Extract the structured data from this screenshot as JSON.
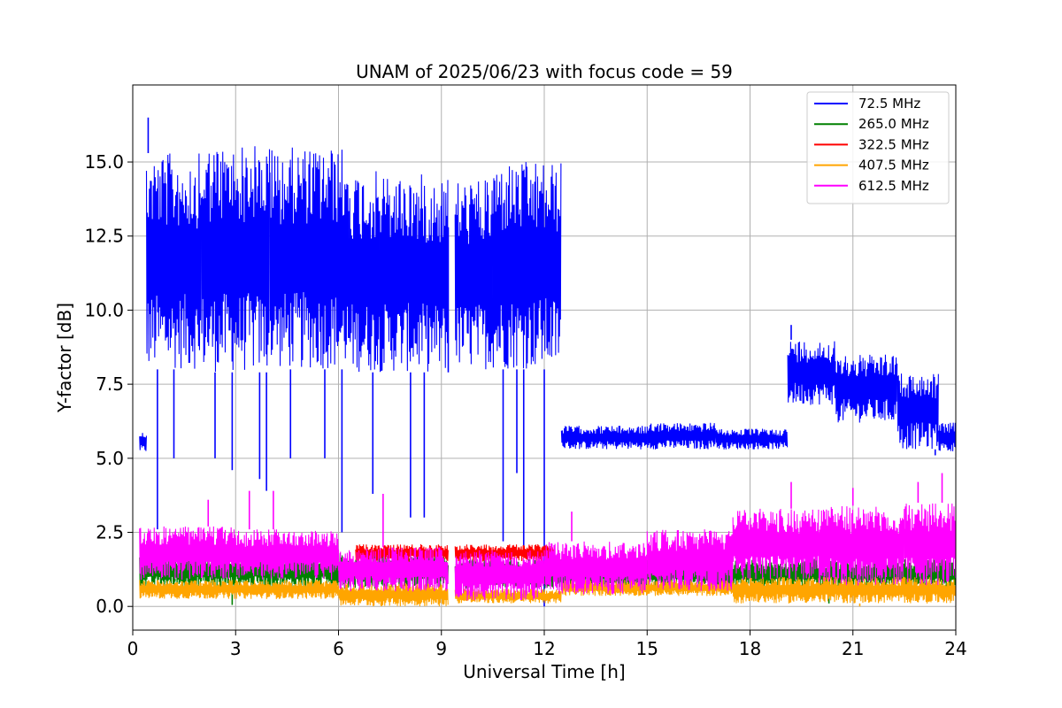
{
  "chart_data": {
    "type": "line",
    "title": "UNAM of 2025/06/23 with focus code = 59",
    "xlabel": "Universal Time [h]",
    "ylabel": "Y-factor [dB]",
    "xlim": [
      0,
      24
    ],
    "ylim": [
      -0.8,
      17.6
    ],
    "xticks": [
      0,
      3,
      6,
      9,
      12,
      15,
      18,
      21,
      24
    ],
    "xtick_labels": [
      "0",
      "3",
      "6",
      "9",
      "12",
      "15",
      "18",
      "21",
      "24"
    ],
    "yticks": [
      0.0,
      2.5,
      5.0,
      7.5,
      10.0,
      12.5,
      15.0
    ],
    "ytick_labels": [
      "0.0",
      "2.5",
      "5.0",
      "7.5",
      "10.0",
      "12.5",
      "15.0"
    ],
    "grid": true,
    "legend_position": "top-right",
    "series": [
      {
        "name": " 72.5 MHz",
        "color": "#0000ff",
        "bands": [
          {
            "x": [
              0.2,
              0.4
            ],
            "low": 5.2,
            "high": 5.9
          },
          {
            "x": [
              0.4,
              2.0
            ],
            "low": 8.0,
            "high": 15.3
          },
          {
            "x": [
              2.0,
              4.0
            ],
            "low": 7.9,
            "high": 15.6
          },
          {
            "x": [
              4.0,
              6.3
            ],
            "low": 8.0,
            "high": 15.5
          },
          {
            "x": [
              6.3,
              7.2
            ],
            "low": 7.9,
            "high": 14.7
          },
          {
            "x": [
              7.2,
              9.2
            ],
            "low": 7.9,
            "high": 14.6
          },
          {
            "x": [
              9.4,
              10.5
            ],
            "low": 8.0,
            "high": 14.4
          },
          {
            "x": [
              10.5,
              12.5
            ],
            "low": 8.0,
            "high": 15.0
          },
          {
            "x": [
              12.5,
              15.0
            ],
            "low": 5.3,
            "high": 6.1
          },
          {
            "x": [
              15.0,
              17.0
            ],
            "low": 5.3,
            "high": 6.2
          },
          {
            "x": [
              17.0,
              19.1
            ],
            "low": 5.3,
            "high": 6.0
          },
          {
            "x": [
              19.1,
              20.5
            ],
            "low": 6.8,
            "high": 9.0
          },
          {
            "x": [
              20.5,
              22.3
            ],
            "low": 6.2,
            "high": 8.5
          },
          {
            "x": [
              22.3,
              23.5
            ],
            "low": 5.3,
            "high": 7.9
          },
          {
            "x": [
              23.5,
              24.0
            ],
            "low": 5.2,
            "high": 6.2
          }
        ],
        "spikes": [
          {
            "x": 0.45,
            "y": 16.5
          },
          {
            "x": 0.72,
            "y": 2.6
          },
          {
            "x": 1.2,
            "y": 5.0
          },
          {
            "x": 2.4,
            "y": 5.0
          },
          {
            "x": 2.9,
            "y": 4.6
          },
          {
            "x": 3.7,
            "y": 4.3
          },
          {
            "x": 3.9,
            "y": 3.9
          },
          {
            "x": 4.6,
            "y": 5.0
          },
          {
            "x": 5.6,
            "y": 5.0
          },
          {
            "x": 6.1,
            "y": 2.5
          },
          {
            "x": 7.0,
            "y": 3.8
          },
          {
            "x": 8.1,
            "y": 3.0
          },
          {
            "x": 8.5,
            "y": 3.0
          },
          {
            "x": 9.2,
            "y": 12.8
          },
          {
            "x": 10.8,
            "y": 2.2
          },
          {
            "x": 11.2,
            "y": 4.5
          },
          {
            "x": 11.4,
            "y": 2.0
          },
          {
            "x": 12.0,
            "y": 0.0
          },
          {
            "x": 19.2,
            "y": 9.5
          },
          {
            "x": 23.4,
            "y": 5.1
          }
        ]
      },
      {
        "name": "265.0 MHz",
        "color": "#008000",
        "bands": [
          {
            "x": [
              0.2,
              9.2
            ],
            "low": 0.6,
            "high": 1.8
          },
          {
            "x": [
              9.4,
              24.0
            ],
            "low": 0.6,
            "high": 1.6
          }
        ],
        "spikes": [
          {
            "x": 2.9,
            "y": 0.05
          },
          {
            "x": 9.3,
            "y": 1.4
          },
          {
            "x": 20.3,
            "y": 0.1
          }
        ]
      },
      {
        "name": "322.5 MHz",
        "color": "#ff0000",
        "bands": [
          {
            "x": [
              6.5,
              9.2
            ],
            "low": 1.5,
            "high": 2.1
          },
          {
            "x": [
              9.4,
              12.3
            ],
            "low": 1.5,
            "high": 2.1
          }
        ],
        "spikes": [
          {
            "x": 2.7,
            "y": 0.05
          },
          {
            "x": 15.8,
            "y": 2.9
          },
          {
            "x": 16.6,
            "y": 3.0
          },
          {
            "x": 21.2,
            "y": 0.0
          },
          {
            "x": 23.2,
            "y": 6.4
          }
        ]
      },
      {
        "name": "407.5 MHz",
        "color": "#ffa500",
        "bands": [
          {
            "x": [
              0.2,
              6.0
            ],
            "low": 0.25,
            "high": 0.9
          },
          {
            "x": [
              6.0,
              9.2
            ],
            "low": 0.0,
            "high": 0.8
          },
          {
            "x": [
              9.4,
              12.5
            ],
            "low": 0.1,
            "high": 0.6
          },
          {
            "x": [
              12.5,
              17.5
            ],
            "low": 0.35,
            "high": 0.9
          },
          {
            "x": [
              17.5,
              24.0
            ],
            "low": 0.1,
            "high": 1.0
          }
        ],
        "spikes": [
          {
            "x": 6.7,
            "y": 0.0
          },
          {
            "x": 21.2,
            "y": 0.0
          }
        ]
      },
      {
        "name": "612.5 MHz",
        "color": "#ff00ff",
        "bands": [
          {
            "x": [
              0.2,
              3.0
            ],
            "low": 0.9,
            "high": 2.7
          },
          {
            "x": [
              3.0,
              6.0
            ],
            "low": 0.9,
            "high": 2.6
          },
          {
            "x": [
              6.0,
              9.2
            ],
            "low": 0.5,
            "high": 2.0
          },
          {
            "x": [
              9.4,
              12.0
            ],
            "low": 0.2,
            "high": 1.9
          },
          {
            "x": [
              12.0,
              15.0
            ],
            "low": 0.4,
            "high": 2.2
          },
          {
            "x": [
              15.0,
              17.5
            ],
            "low": 0.5,
            "high": 2.6
          },
          {
            "x": [
              17.5,
              20.0
            ],
            "low": 0.9,
            "high": 3.3
          },
          {
            "x": [
              20.0,
              22.5
            ],
            "low": 0.7,
            "high": 3.4
          },
          {
            "x": [
              22.5,
              24.0
            ],
            "low": 0.7,
            "high": 3.5
          }
        ],
        "spikes": [
          {
            "x": 2.2,
            "y": 3.6
          },
          {
            "x": 3.4,
            "y": 3.9
          },
          {
            "x": 4.1,
            "y": 3.9
          },
          {
            "x": 7.3,
            "y": 3.8
          },
          {
            "x": 12.8,
            "y": 3.2
          },
          {
            "x": 19.2,
            "y": 4.2
          },
          {
            "x": 21.0,
            "y": 4.0
          },
          {
            "x": 22.9,
            "y": 4.2
          },
          {
            "x": 23.6,
            "y": 4.5
          }
        ]
      }
    ]
  }
}
